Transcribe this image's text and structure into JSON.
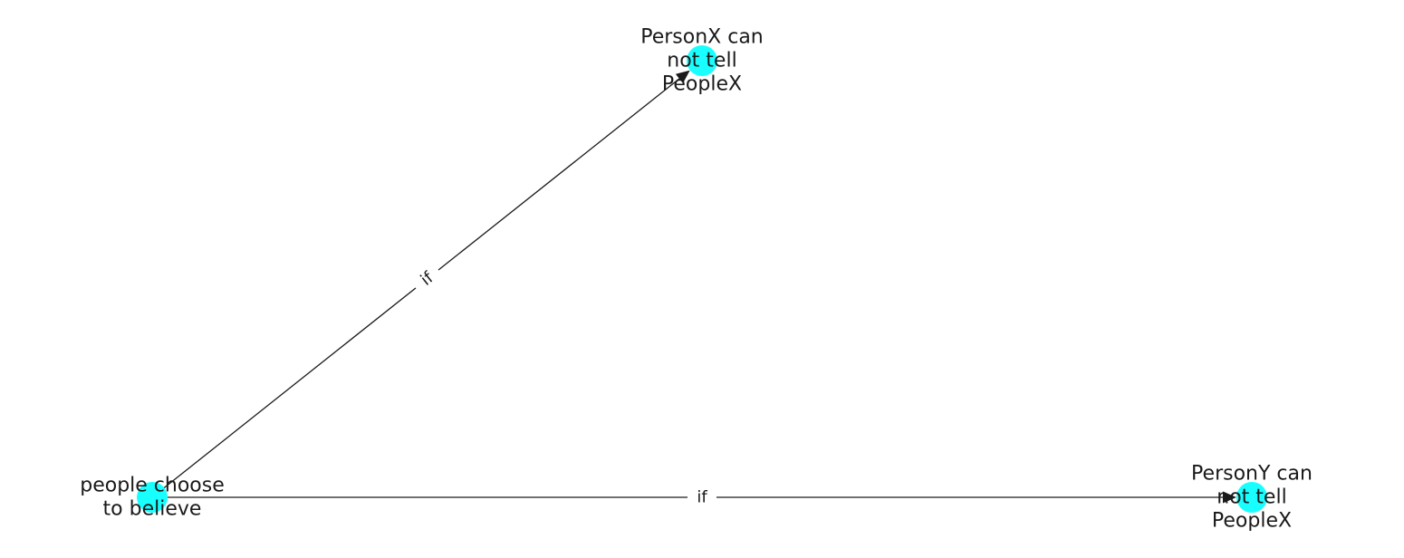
{
  "diagram": {
    "node_color": "#19ffff",
    "edge_color": "#1a1a1a",
    "nodes": [
      {
        "id": "believe",
        "lines": [
          "people choose",
          "to believe"
        ]
      },
      {
        "id": "personx",
        "lines": [
          "PersonX can",
          "not tell",
          "PeopleX"
        ]
      },
      {
        "id": "persony",
        "lines": [
          "PersonY can",
          "not tell",
          "PeopleX"
        ]
      }
    ],
    "edges": [
      {
        "source": "believe",
        "target": "personx",
        "label": "if"
      },
      {
        "source": "believe",
        "target": "persony",
        "label": "if"
      }
    ]
  }
}
